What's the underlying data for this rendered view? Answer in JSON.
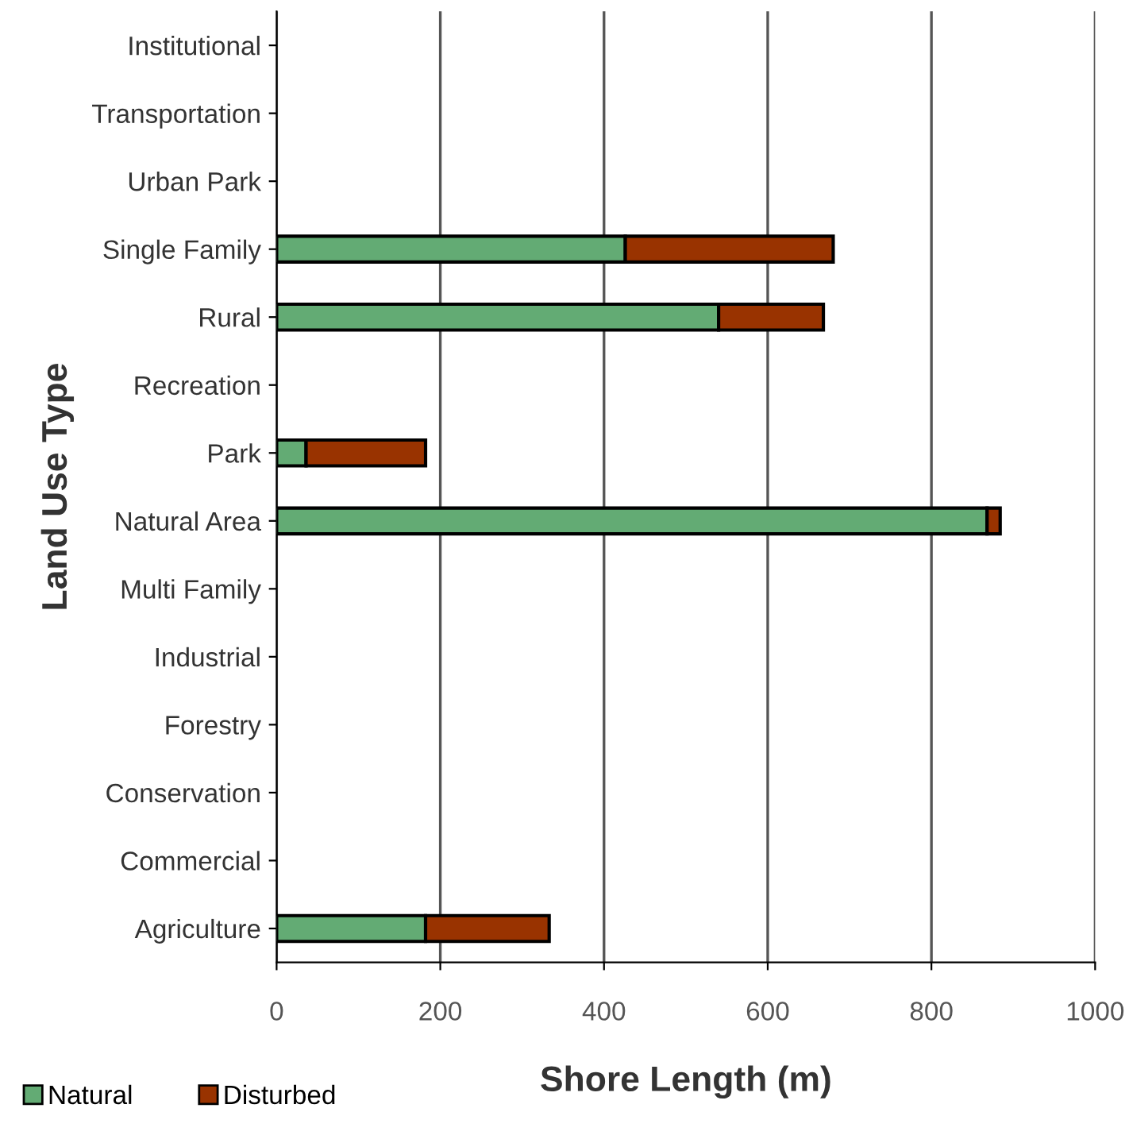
{
  "chart_data": {
    "type": "bar",
    "orientation": "horizontal",
    "stacked": true,
    "xlabel": "Shore Length (m)",
    "ylabel": "Land Use Type",
    "categories": [
      "Institutional",
      "Transportation",
      "Urban Park",
      "Single Family",
      "Rural",
      "Recreation",
      "Park",
      "Natural Area",
      "Multi Family",
      "Industrial",
      "Forestry",
      "Conservation",
      "Commercial",
      "Agriculture"
    ],
    "series": [
      {
        "name": "Natural",
        "color": "#63ab74",
        "values": [
          null,
          null,
          null,
          426,
          540,
          null,
          36,
          868,
          null,
          null,
          null,
          null,
          null,
          182
        ]
      },
      {
        "name": "Disturbed",
        "color": "#993300",
        "values": [
          null,
          null,
          null,
          254,
          128,
          null,
          146,
          16,
          null,
          null,
          null,
          null,
          null,
          151
        ]
      }
    ],
    "xlim": [
      0,
      1000
    ],
    "xticks": [
      0,
      200,
      400,
      600,
      800,
      1000
    ],
    "grid": "x",
    "legend": "bottom left"
  }
}
